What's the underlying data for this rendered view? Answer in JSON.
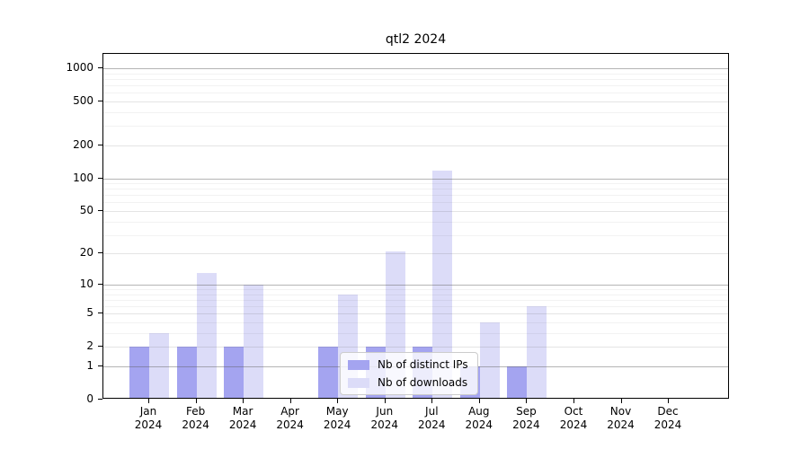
{
  "chart_data": {
    "type": "bar",
    "title": "qtl2 2024",
    "months": [
      "Jan",
      "Feb",
      "Mar",
      "Apr",
      "May",
      "Jun",
      "Jul",
      "Aug",
      "Sep",
      "Oct",
      "Nov",
      "Dec"
    ],
    "year": "2024",
    "categories": [
      "Jan 2024",
      "Feb 2024",
      "Mar 2024",
      "Apr 2024",
      "May 2024",
      "Jun 2024",
      "Jul 2024",
      "Aug 2024",
      "Sep 2024",
      "Oct 2024",
      "Nov 2024",
      "Dec 2024"
    ],
    "series": [
      {
        "name": "Nb of distinct IPs",
        "color": "#a4a4f0",
        "values": [
          2,
          2,
          2,
          0,
          2,
          2,
          2,
          1,
          1,
          0,
          0,
          0
        ]
      },
      {
        "name": "Nb of downloads",
        "color": "#dcdcf8",
        "values": [
          3,
          13,
          10,
          0,
          8,
          21,
          117,
          4,
          6,
          0,
          0,
          0
        ]
      }
    ],
    "y_scale": "log10(value+1)",
    "y_ticks": [
      0,
      1,
      2,
      5,
      10,
      20,
      50,
      100,
      200,
      500,
      1000
    ],
    "ylim": [
      0,
      1300
    ],
    "grid": true,
    "legend_position": "inside-bottom-center",
    "xlabel": "",
    "ylabel": ""
  }
}
